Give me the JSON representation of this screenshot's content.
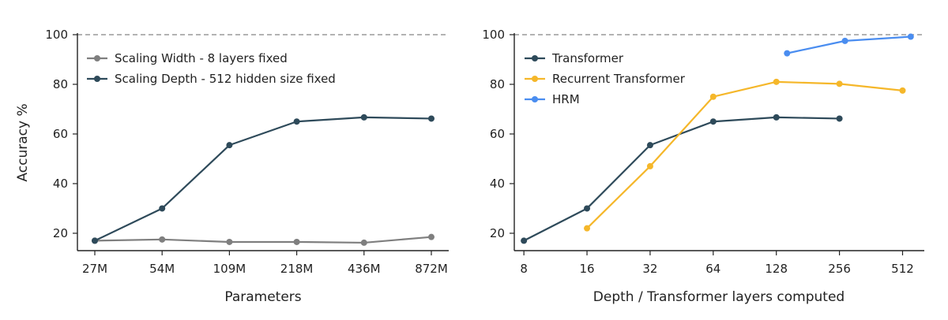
{
  "chart_data": [
    {
      "type": "line",
      "xlabel": "Parameters",
      "ylabel": "Accuracy %",
      "x_scale": "categorical",
      "categories": [
        "27M",
        "54M",
        "109M",
        "218M",
        "436M",
        "872M"
      ],
      "ylim": [
        13,
        100
      ],
      "yticks": [
        20,
        40,
        60,
        80,
        100
      ],
      "reference_line": 100,
      "grid": false,
      "legend_position": "top-left",
      "series": [
        {
          "name": "Scaling Width - 8 layers fixed",
          "color": "#7f7f7f",
          "values": [
            17,
            17.5,
            16.5,
            16.5,
            16.2,
            18.5
          ]
        },
        {
          "name": "Scaling Depth - 512 hidden size fixed",
          "color": "#2e4a5a",
          "values": [
            17,
            30,
            55.5,
            65,
            66.7,
            66.2
          ]
        }
      ]
    },
    {
      "type": "line",
      "xlabel": "Depth / Transformer layers computed",
      "ylabel": "",
      "x_scale": "log2",
      "xticks": [
        8,
        16,
        32,
        64,
        128,
        256,
        512
      ],
      "xlim": [
        7.2,
        650
      ],
      "ylim": [
        13,
        100
      ],
      "yticks": [
        20,
        40,
        60,
        80,
        100
      ],
      "reference_line": 100,
      "grid": false,
      "legend_position": "top-left",
      "series": [
        {
          "name": "Transformer",
          "color": "#2e4a5a",
          "x": [
            8,
            16,
            32,
            64,
            128,
            256
          ],
          "values": [
            17,
            30,
            55.5,
            65,
            66.7,
            66.2
          ]
        },
        {
          "name": "Recurrent Transformer",
          "color": "#f5b72a",
          "x": [
            16,
            32,
            64,
            128,
            256,
            512
          ],
          "values": [
            22,
            47,
            75,
            81,
            80.2,
            77.5
          ]
        },
        {
          "name": "HRM",
          "color": "#4a8df0",
          "x": [
            144,
            272,
            560
          ],
          "values": [
            92.5,
            97.5,
            99.2
          ]
        }
      ]
    }
  ]
}
